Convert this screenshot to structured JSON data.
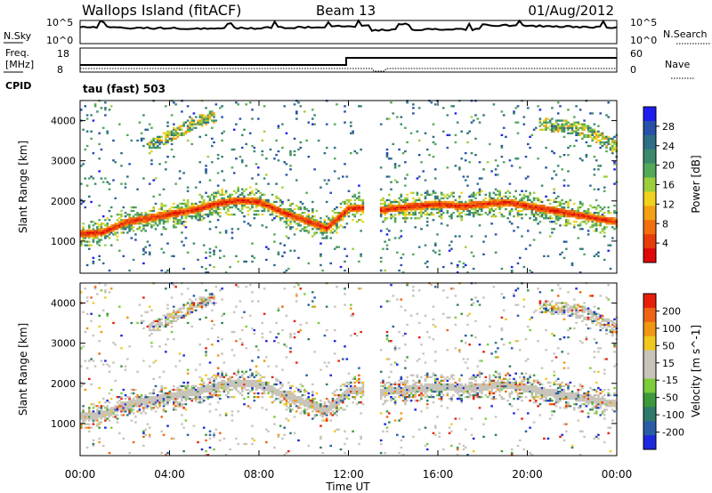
{
  "header": {
    "station": "Wallops Island (fitACF)",
    "beam": "Beam 13",
    "date": "01/Aug/2012"
  },
  "noise_panel": {
    "left_label": "N.Sky",
    "right_label": "N.Search",
    "left_ticks": [
      "10^5",
      "10^0"
    ],
    "right_ticks": [
      "10^5",
      "10^0"
    ]
  },
  "freq_panel": {
    "left_label_line1": "Freq.",
    "left_label_line2": "[MHz]",
    "right_label": "Nave",
    "left_ticks": [
      "18",
      "8"
    ],
    "right_ticks": [
      "60",
      "0"
    ]
  },
  "cpid": {
    "label": "CPID",
    "value": "tau (fast) 503"
  },
  "colors": {
    "power": [
      "#1e1ef0",
      "#2850a8",
      "#2e6e86",
      "#3c8a6e",
      "#54a85a",
      "#9ccf3c",
      "#f0d21e",
      "#f5a014",
      "#f26e0e",
      "#e83c0a",
      "#e00808"
    ],
    "velocity": [
      "#1e28dc",
      "#2a5ca6",
      "#2f7a6a",
      "#3c9a3c",
      "#7ccc3c",
      "#c8c4ba",
      "#c8c4ba",
      "#f0c81e",
      "#f09614",
      "#ee6414",
      "#e81e0a"
    ]
  },
  "chart_data": [
    {
      "type": "heatmap",
      "panel": "power",
      "ylabel": "Slant Range [km]",
      "colorbar_label": "Power [dB]",
      "colorbar_ticks": [
        "28",
        "24",
        "20",
        "16",
        "12",
        "8",
        "4"
      ],
      "y_ticks": [
        "4000",
        "3000",
        "2000",
        "1000"
      ],
      "ylim": [
        200,
        4500
      ],
      "clim": [
        0,
        30
      ],
      "bands": [
        {
          "name": "main",
          "points": [
            [
              0.0,
              1150
            ],
            [
              1.0,
              1200
            ],
            [
              2.0,
              1450
            ],
            [
              3.0,
              1550
            ],
            [
              4.0,
              1650
            ],
            [
              5.0,
              1750
            ],
            [
              6.0,
              1900
            ],
            [
              7.0,
              2000
            ],
            [
              8.0,
              1950
            ],
            [
              9.0,
              1700
            ],
            [
              10.0,
              1500
            ],
            [
              11.0,
              1300
            ],
            [
              12.0,
              1800
            ],
            [
              13.0,
              1800
            ],
            [
              13.5,
              1750
            ],
            [
              14.0,
              1800
            ],
            [
              15.0,
              1850
            ],
            [
              16.0,
              1900
            ],
            [
              17.0,
              1850
            ],
            [
              18.0,
              1900
            ],
            [
              19.0,
              1950
            ],
            [
              20.0,
              1850
            ],
            [
              21.0,
              1750
            ],
            [
              22.0,
              1650
            ],
            [
              23.0,
              1550
            ],
            [
              24.0,
              1450
            ]
          ]
        },
        {
          "name": "upper-evening",
          "points": [
            [
              20.5,
              3900
            ],
            [
              21.5,
              3850
            ],
            [
              22.5,
              3750
            ],
            [
              23.5,
              3450
            ],
            [
              24.0,
              3300
            ]
          ]
        },
        {
          "name": "upper-morning",
          "points": [
            [
              3.0,
              3300
            ],
            [
              4.0,
              3600
            ],
            [
              5.0,
              3900
            ],
            [
              6.0,
              4100
            ]
          ]
        }
      ]
    },
    {
      "type": "heatmap",
      "panel": "velocity",
      "ylabel": "Slant Range [km]",
      "colorbar_label": "Velocity [m s^-1]",
      "colorbar_ticks": [
        "200",
        "100",
        "50",
        "15",
        "-15",
        "-50",
        "-100",
        "-200"
      ],
      "y_ticks": [
        "4000",
        "3000",
        "2000",
        "1000"
      ],
      "ylim": [
        200,
        4500
      ],
      "clim": [
        -200,
        200
      ]
    }
  ],
  "x_axis": {
    "label": "Time UT",
    "ticks": [
      "00:00",
      "04:00",
      "08:00",
      "12:00",
      "16:00",
      "20:00",
      "00:00"
    ],
    "range_hours": [
      0,
      24
    ],
    "data_gap_hours": [
      12.6,
      13.4
    ]
  }
}
